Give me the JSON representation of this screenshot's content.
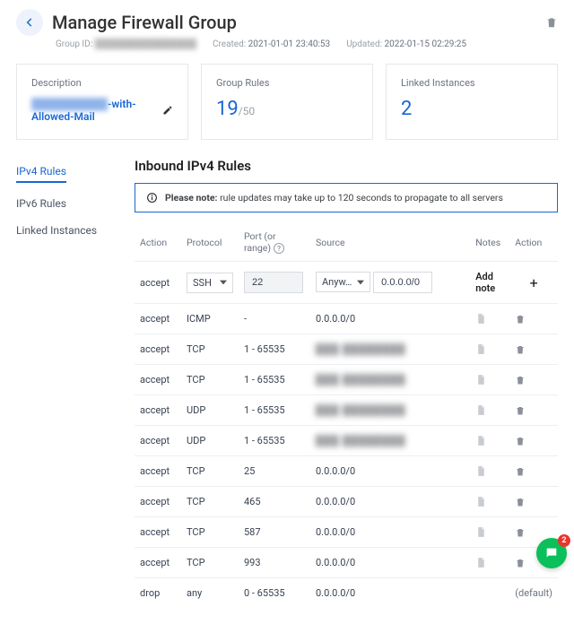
{
  "header": {
    "title": "Manage Firewall Group",
    "group_id_label": "Group ID:",
    "group_id_value": "████████████████",
    "created_label": "Created:",
    "created_value": "2021-01-01 23:40:53",
    "updated_label": "Updated:",
    "updated_value": "2022-01-15 02:29:25"
  },
  "cards": {
    "description": {
      "label": "Description",
      "obscured_prefix": "██████████",
      "visible_suffix": "-with-Allowed-Mail"
    },
    "group_rules": {
      "label": "Group Rules",
      "count": "19",
      "limit": "/50"
    },
    "linked_instances": {
      "label": "Linked Instances",
      "count": "2"
    },
    "accent_color": "#1967d2",
    "border_color": "#e5e7eb"
  },
  "sidebar": {
    "items": [
      {
        "label": "IPv4 Rules",
        "active": true
      },
      {
        "label": "IPv6 Rules",
        "active": false
      },
      {
        "label": "Linked Instances",
        "active": false
      }
    ]
  },
  "section": {
    "title": "Inbound IPv4 Rules",
    "notice_bold": "Please note:",
    "notice_text": " rule updates may take up to 120 seconds to propagate to all servers"
  },
  "table": {
    "columns": {
      "action": "Action",
      "protocol": "Protocol",
      "port": "Port (or range)",
      "source": "Source",
      "notes": "Notes",
      "action2": "Action"
    },
    "new_row": {
      "action": "accept",
      "protocol": "SSH",
      "port": "22",
      "source_type": "Anyw…",
      "source_value": "0.0.0.0/0",
      "add_note": "Add note",
      "plus": "+"
    },
    "rows": [
      {
        "action": "accept",
        "protocol": "ICMP",
        "port": "-",
        "source": "0.0.0.0/0",
        "obscured": false
      },
      {
        "action": "accept",
        "protocol": "TCP",
        "port": "1 - 65535",
        "source": "███ ████████",
        "obscured": true
      },
      {
        "action": "accept",
        "protocol": "TCP",
        "port": "1 - 65535",
        "source": "███ ████████",
        "obscured": true
      },
      {
        "action": "accept",
        "protocol": "UDP",
        "port": "1 - 65535",
        "source": "███ ████████",
        "obscured": true
      },
      {
        "action": "accept",
        "protocol": "UDP",
        "port": "1 - 65535",
        "source": "███ ████████",
        "obscured": true
      },
      {
        "action": "accept",
        "protocol": "TCP",
        "port": "25",
        "source": "0.0.0.0/0",
        "obscured": false
      },
      {
        "action": "accept",
        "protocol": "TCP",
        "port": "465",
        "source": "0.0.0.0/0",
        "obscured": false
      },
      {
        "action": "accept",
        "protocol": "TCP",
        "port": "587",
        "source": "0.0.0.0/0",
        "obscured": false
      },
      {
        "action": "accept",
        "protocol": "TCP",
        "port": "993",
        "source": "0.0.0.0/0",
        "obscured": false
      }
    ],
    "default_row": {
      "action": "drop",
      "protocol": "any",
      "port": "0 - 65535",
      "source": "0.0.0.0/0",
      "label": "(default)"
    }
  },
  "chat": {
    "badge": "2"
  }
}
